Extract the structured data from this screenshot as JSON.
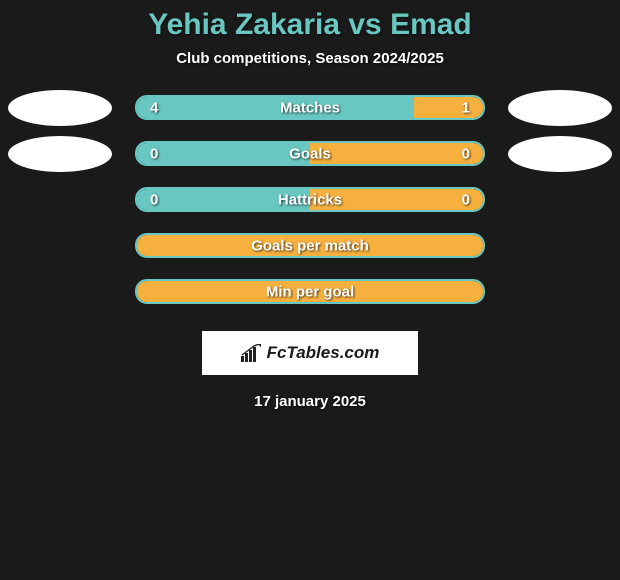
{
  "title": "Yehia Zakaria vs Emad",
  "subtitle": "Club competitions, Season 2024/2025",
  "date": "17 january 2025",
  "logo_text": "FcTables.com",
  "background_color": "#1a1a1a",
  "title_color": "#68c7c1",
  "text_color": "#ffffff",
  "bar_track_width": 350,
  "bar_track_height": 25,
  "team_dot": {
    "left_color": "#ffffff",
    "right_color": "#ffffff",
    "width": 104,
    "height": 36
  },
  "rows": [
    {
      "label": "Matches",
      "left_value": "4",
      "right_value": "1",
      "left_width_pct": 80,
      "right_width_pct": 20,
      "left_color": "#68c7c1",
      "right_color": "#f6b03e",
      "border_color": "#68c7c1",
      "show_left_dot": true,
      "show_right_dot": true,
      "show_values": true
    },
    {
      "label": "Goals",
      "left_value": "0",
      "right_value": "0",
      "left_width_pct": 50,
      "right_width_pct": 50,
      "left_color": "#68c7c1",
      "right_color": "#f6b03e",
      "border_color": "#68c7c1",
      "show_left_dot": true,
      "show_right_dot": true,
      "show_values": true
    },
    {
      "label": "Hattricks",
      "left_value": "0",
      "right_value": "0",
      "left_width_pct": 50,
      "right_width_pct": 50,
      "left_color": "#68c7c1",
      "right_color": "#f6b03e",
      "border_color": "#68c7c1",
      "show_left_dot": false,
      "show_right_dot": false,
      "show_values": true
    },
    {
      "label": "Goals per match",
      "left_value": "",
      "right_value": "",
      "left_width_pct": 100,
      "right_width_pct": 0,
      "left_color": "#f6b03e",
      "right_color": "#f6b03e",
      "border_color": "#68c7c1",
      "show_left_dot": false,
      "show_right_dot": false,
      "show_values": false
    },
    {
      "label": "Min per goal",
      "left_value": "",
      "right_value": "",
      "left_width_pct": 100,
      "right_width_pct": 0,
      "left_color": "#f6b03e",
      "right_color": "#f6b03e",
      "border_color": "#68c7c1",
      "show_left_dot": false,
      "show_right_dot": false,
      "show_values": false
    }
  ]
}
